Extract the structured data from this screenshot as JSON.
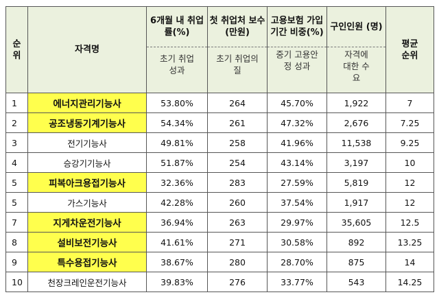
{
  "header": {
    "rank": "순위",
    "name": "자격명",
    "cols": [
      {
        "title": "6개월 내 취업률(%)",
        "sub": "초기 취업 성과"
      },
      {
        "title": "첫 취업처 보수(만원)",
        "sub": "초기 취업의 질"
      },
      {
        "title": "고용보험 가입기간 비중(%)",
        "sub": "중기 고용안정 성과"
      },
      {
        "title": "구인인원 (명)",
        "sub": "자격에 대한 수요"
      }
    ],
    "avg": "평균 순위"
  },
  "highlight_color": "#ffff4d",
  "rows": [
    {
      "rank": "1",
      "name": "에너지관리기능사",
      "hl": true,
      "rate": "53.80%",
      "pay": "264",
      "ins": "45.70%",
      "jobs": "1,922",
      "avg": "7"
    },
    {
      "rank": "2",
      "name": "공조냉동기계기능사",
      "hl": true,
      "rate": "54.34%",
      "pay": "261",
      "ins": "47.32%",
      "jobs": "2,676",
      "avg": "7.25"
    },
    {
      "rank": "3",
      "name": "전기기능사",
      "hl": false,
      "rate": "49.81%",
      "pay": "258",
      "ins": "41.96%",
      "jobs": "11,538",
      "avg": "9.25"
    },
    {
      "rank": "4",
      "name": "승강기기능사",
      "hl": false,
      "rate": "51.87%",
      "pay": "254",
      "ins": "43.14%",
      "jobs": "3,197",
      "avg": "10"
    },
    {
      "rank": "5",
      "name": "피복아크용접기능사",
      "hl": true,
      "rate": "32.36%",
      "pay": "283",
      "ins": "27.59%",
      "jobs": "5,819",
      "avg": "12"
    },
    {
      "rank": "5",
      "name": "가스기능사",
      "hl": false,
      "rate": "42.28%",
      "pay": "260",
      "ins": "37.54%",
      "jobs": "1,917",
      "avg": "12"
    },
    {
      "rank": "7",
      "name": "지게차운전기능사",
      "hl": true,
      "rate": "36.94%",
      "pay": "263",
      "ins": "29.97%",
      "jobs": "35,605",
      "avg": "12.5"
    },
    {
      "rank": "8",
      "name": "설비보전기능사",
      "hl": true,
      "rate": "41.61%",
      "pay": "271",
      "ins": "30.58%",
      "jobs": "892",
      "avg": "13.25"
    },
    {
      "rank": "9",
      "name": "특수용접기능사",
      "hl": true,
      "rate": "38.67%",
      "pay": "280",
      "ins": "28.70%",
      "jobs": "875",
      "avg": "14"
    },
    {
      "rank": "10",
      "name": "천장크레인운전기능사",
      "hl": false,
      "rate": "39.83%",
      "pay": "276",
      "ins": "33.77%",
      "jobs": "543",
      "avg": "14.25"
    }
  ]
}
